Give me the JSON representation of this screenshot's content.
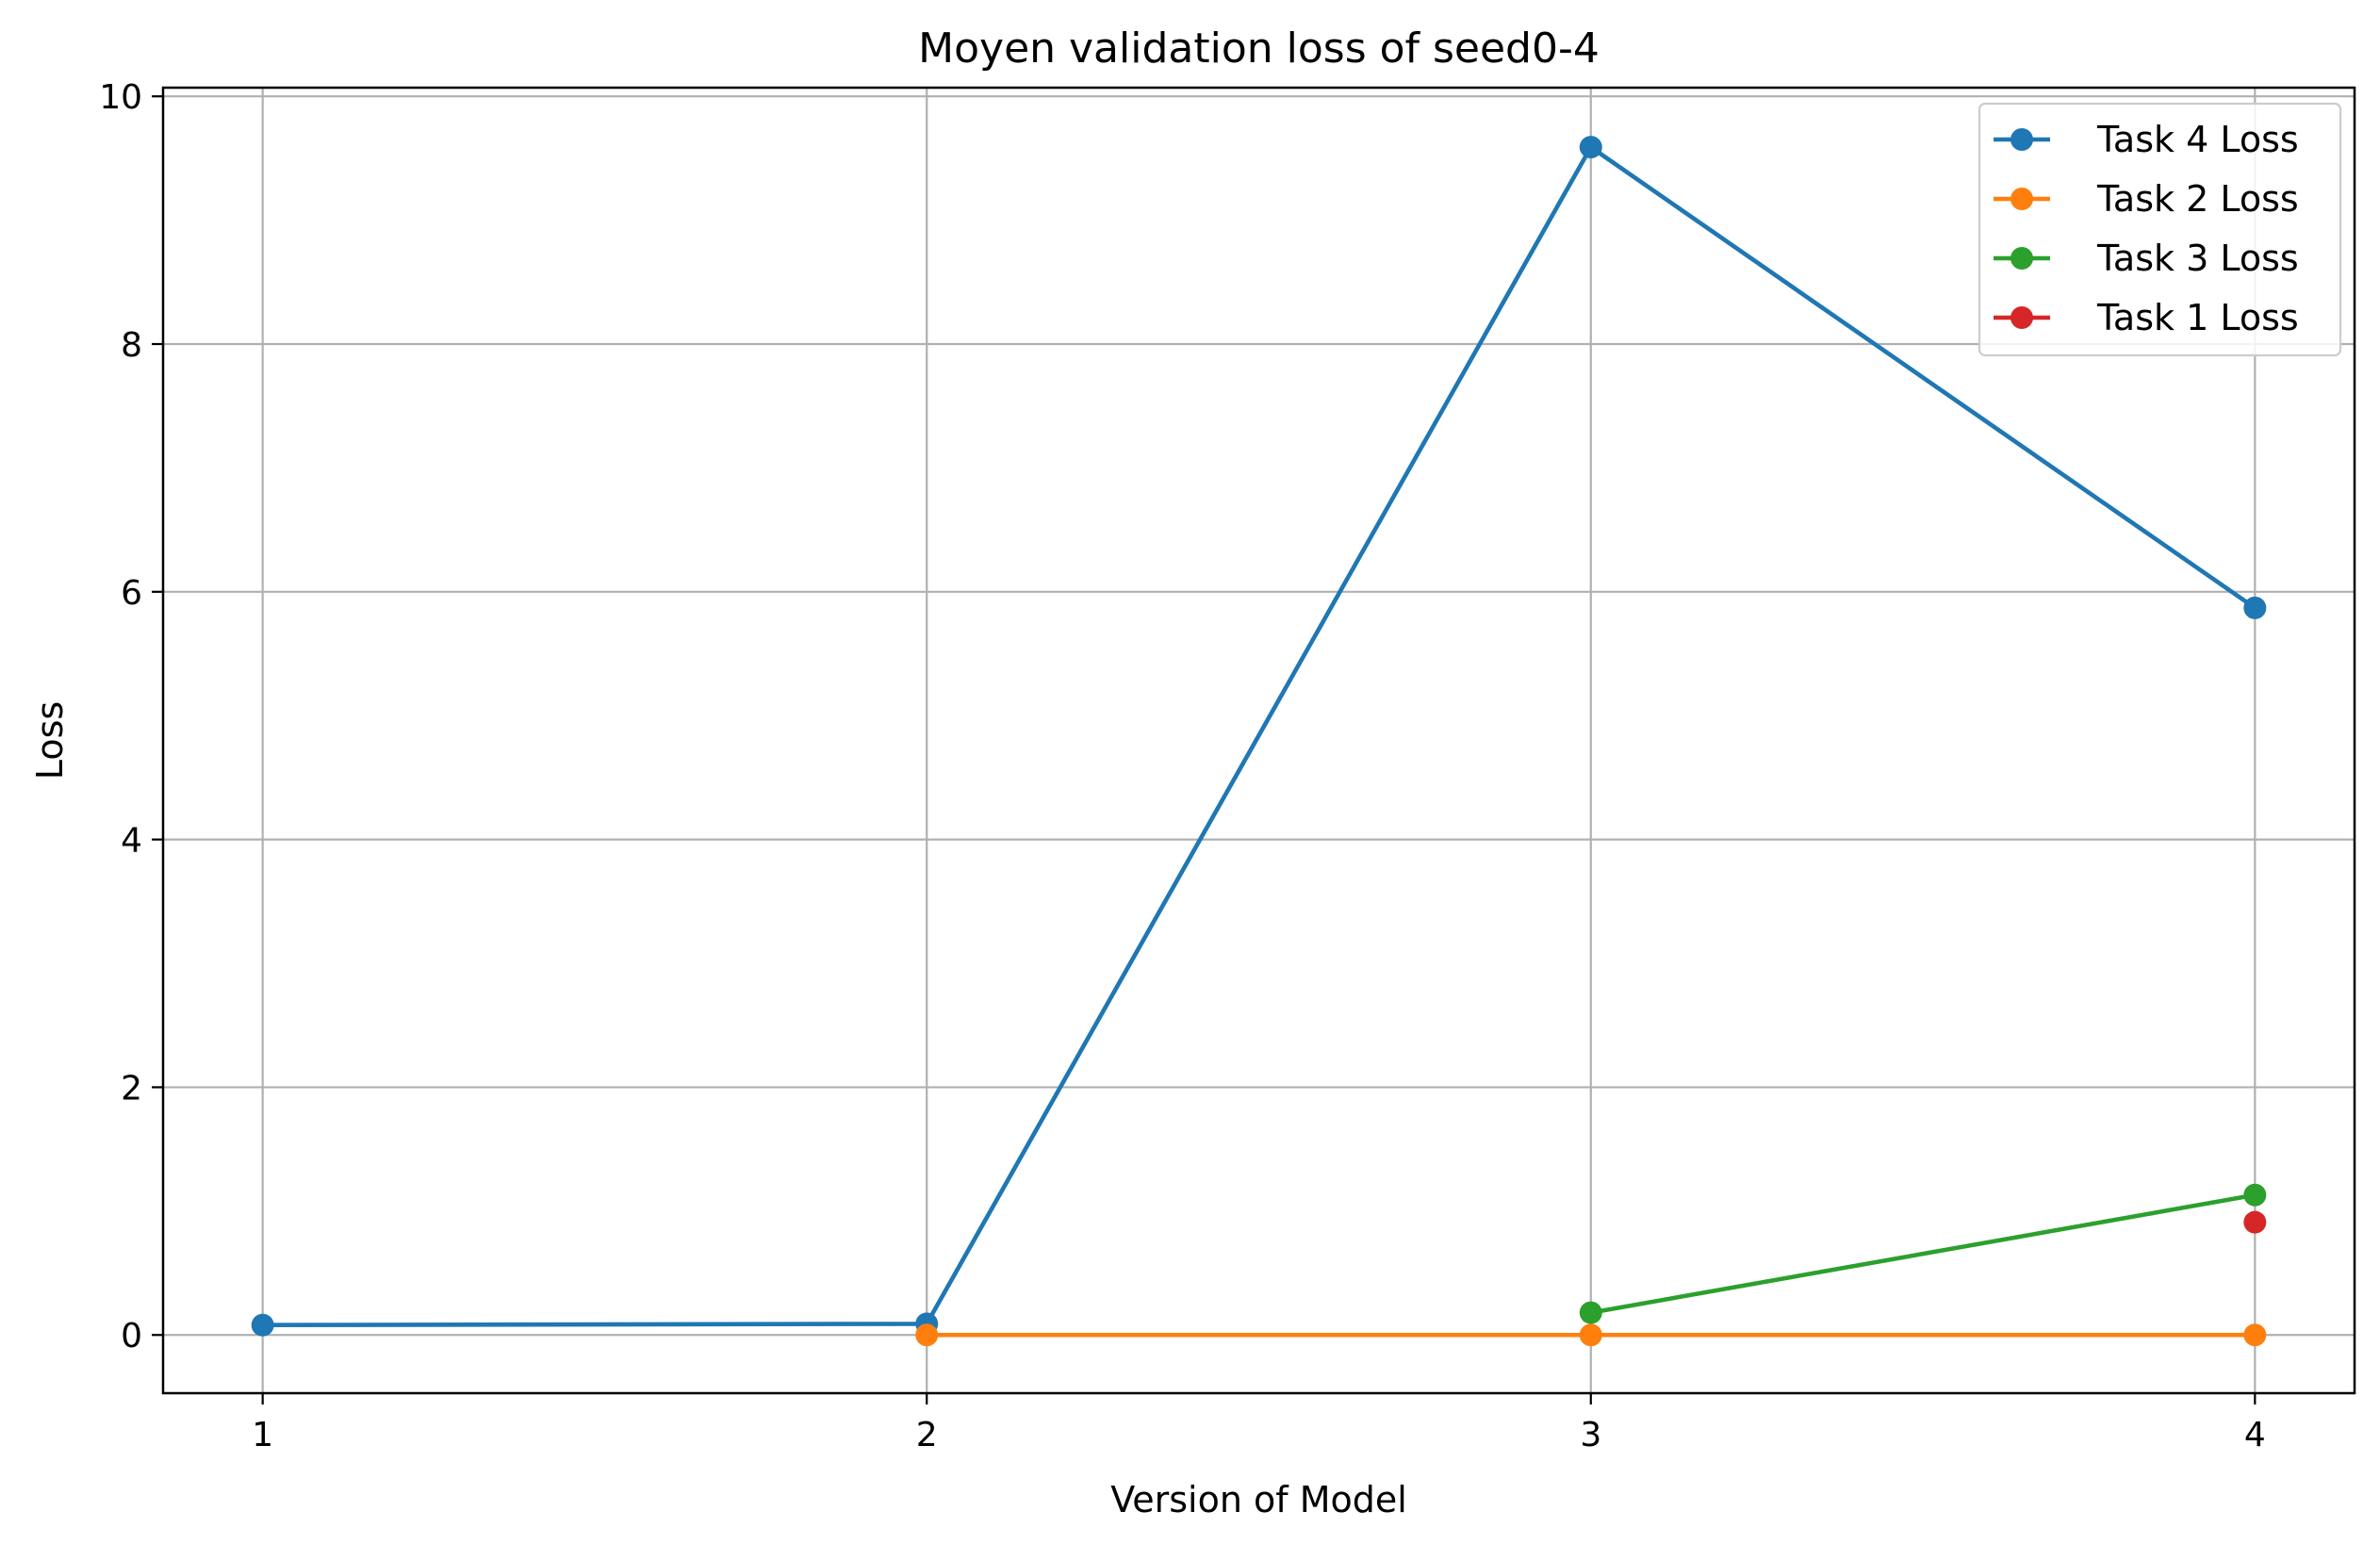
{
  "chart_data": {
    "type": "line",
    "title": "Moyen validation loss of seed0-4",
    "xlabel": "Version of Model",
    "ylabel": "Loss",
    "xlim": [
      0.85,
      4.15
    ],
    "ylim": [
      -0.47,
      10.07
    ],
    "xticks": [
      1,
      2,
      3,
      4
    ],
    "xtick_labels": [
      "1",
      "2",
      "3",
      "4"
    ],
    "yticks": [
      0,
      2,
      4,
      6,
      8,
      10
    ],
    "ytick_labels": [
      "0",
      "2",
      "4",
      "6",
      "8",
      "10"
    ],
    "grid": true,
    "legend_position": "top-right",
    "series": [
      {
        "name": "Task 4 Loss",
        "color": "#1f77b4",
        "x": [
          1,
          2,
          3,
          4
        ],
        "y": [
          0.08,
          0.09,
          9.59,
          5.87
        ]
      },
      {
        "name": "Task 2 Loss",
        "color": "#ff7f0e",
        "x": [
          2,
          3,
          4
        ],
        "y": [
          0.0,
          0.0,
          0.0
        ]
      },
      {
        "name": "Task 3 Loss",
        "color": "#2ca02c",
        "x": [
          3,
          4
        ],
        "y": [
          0.18,
          1.13
        ]
      },
      {
        "name": "Task 1 Loss",
        "color": "#d62728",
        "x": [
          4
        ],
        "y": [
          0.91
        ]
      }
    ]
  }
}
